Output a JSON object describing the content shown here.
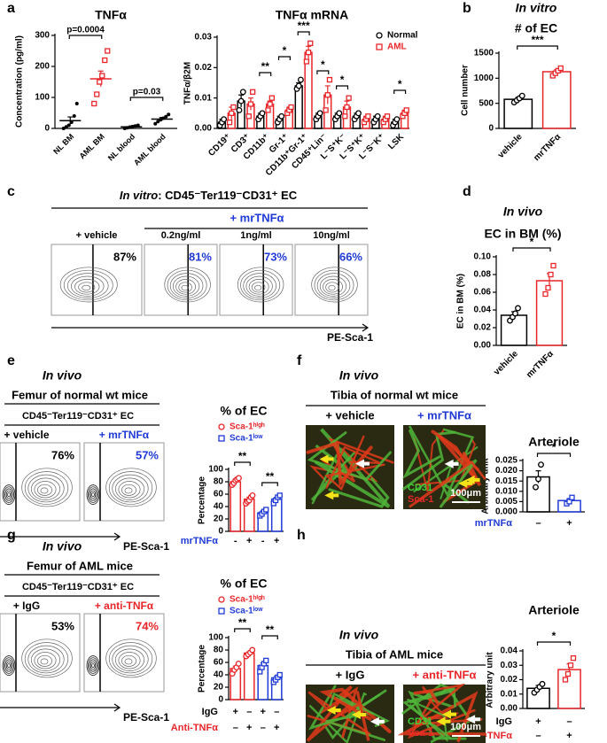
{
  "letters": [
    "a",
    "b",
    "c",
    "d",
    "e",
    "f",
    "g",
    "h"
  ],
  "panels": {
    "c": {
      "context": "In vitro",
      "header": ": CD45⁻Ter119⁻CD31⁺ EC",
      "treatment": "+ mrTNFα",
      "plots": [
        {
          "label": "+ vehicle",
          "pct": "87%"
        },
        {
          "label": "0.2ng/ml",
          "pct": "81%"
        },
        {
          "label": "1ng/ml",
          "pct": "73%"
        },
        {
          "label": "10ng/ml",
          "pct": "66%"
        }
      ],
      "x_axis": "PE-Sca-1"
    },
    "e": {
      "context": "In vivo",
      "title": "Femur of normal wt mice",
      "subtitle": "CD45⁻Ter119⁻CD31⁺ EC",
      "plots": [
        {
          "label": "+ vehicle",
          "pct": "76%"
        },
        {
          "label": "+ mrTNFα",
          "pct": "57%"
        }
      ],
      "x_axis": "PE-Sca-1"
    },
    "f": {
      "context": "In vivo",
      "title": "Tibia of normal wt mice",
      "images": [
        {
          "label": "+ vehicle"
        },
        {
          "label": "+ mrTNFα"
        }
      ],
      "stain": [
        "CD31",
        "Sca-1"
      ],
      "scale": "100μm"
    },
    "g": {
      "context": "In vivo",
      "title": "Femur of AML mice",
      "subtitle": "CD45⁻Ter119⁻CD31⁺ EC",
      "plots": [
        {
          "label": "+ IgG",
          "pct": "53%"
        },
        {
          "label": "+ anti-TNFα",
          "pct": "74%"
        }
      ],
      "x_axis": "PE-Sca-1"
    },
    "h": {
      "context": "In vivo",
      "title": "Tibia of AML mice",
      "images": [
        {
          "label": "+ IgG"
        },
        {
          "label": "+ anti-TNFα"
        }
      ],
      "stain": [
        "CD31",
        "Sca-1"
      ],
      "scale": "100μm"
    }
  },
  "chart_data": [
    {
      "type": "dot",
      "title": "TNFα",
      "y_label": "Concentration (pg/ml)",
      "categories": [
        "NL BM",
        "AML BM",
        "NL blood",
        "AML blood"
      ],
      "series": [
        {
          "colors": [
            "#000000",
            "#e8262a",
            "#000000",
            "#000000"
          ],
          "markers": [
            "dot",
            "square",
            "dot",
            "dot"
          ],
          "values": [
            25,
            160,
            5,
            30
          ],
          "errors": [
            12,
            25,
            3,
            5
          ],
          "points": [
            [
              0,
              5,
              10,
              20,
              40,
              80
            ],
            [
              80,
              110,
              150,
              170,
              220,
              250
            ],
            [
              0,
              2,
              4,
              6,
              8,
              10
            ],
            [
              15,
              22,
              28,
              33,
              38,
              45
            ]
          ]
        }
      ],
      "ylim": [
        0,
        300
      ],
      "yticks": [
        0,
        100,
        200,
        300
      ],
      "annotations": [
        "p=0.0004",
        "p=0.03"
      ]
    },
    {
      "type": "bar",
      "title": "TNFα mRNA",
      "y_label": "TNFα/β2M",
      "categories": [
        "CD19⁺",
        "CD3⁺",
        "CD11b⁺",
        "Gr-1⁺",
        "CD11b⁺Gr-1⁺",
        "CD45⁺Lin⁻",
        "L⁻S⁺K⁻",
        "L⁻S⁺K⁺",
        "L⁻S⁻K⁺",
        "LSK"
      ],
      "series": [
        {
          "name": "Normal",
          "color": "#000000",
          "marker": "circle",
          "values": [
            0.002,
            0.009,
            0.004,
            0.003,
            0.014,
            0.004,
            0.004,
            0.004,
            0.003,
            0.002
          ],
          "errors": [
            0.001,
            0.002,
            0.001,
            0.001,
            0.001,
            0.001,
            0.001,
            0.001,
            0.001,
            0.001
          ],
          "points": [
            [
              0.001,
              0.002,
              0.003
            ],
            [
              0.006,
              0.009,
              0.012
            ],
            [
              0.003,
              0.004,
              0.005
            ],
            [
              0.002,
              0.003,
              0.004
            ],
            [
              0.013,
              0.014,
              0.016
            ],
            [
              0.003,
              0.004,
              0.005
            ],
            [
              0.003,
              0.004,
              0.005
            ],
            [
              0.003,
              0.004,
              0.005
            ],
            [
              0.002,
              0.003,
              0.004
            ],
            [
              0.001,
              0.002,
              0.003
            ]
          ]
        },
        {
          "name": "AML",
          "color": "#e8262a",
          "marker": "square",
          "values": [
            0.005,
            0.008,
            0.008,
            0.006,
            0.025,
            0.011,
            0.007,
            0.003,
            0.003,
            0.005
          ],
          "errors": [
            0.002,
            0.002,
            0.001,
            0.001,
            0.002,
            0.003,
            0.002,
            0.001,
            0.001,
            0.001
          ],
          "points": [
            [
              0.002,
              0.005,
              0.007
            ],
            [
              0.004,
              0.008,
              0.012
            ],
            [
              0.006,
              0.008,
              0.01
            ],
            [
              0.005,
              0.006,
              0.007
            ],
            [
              0.022,
              0.025,
              0.028
            ],
            [
              0.006,
              0.011,
              0.016
            ],
            [
              0.004,
              0.007,
              0.01
            ],
            [
              0.002,
              0.003,
              0.004
            ],
            [
              0.002,
              0.003,
              0.004
            ],
            [
              0.004,
              0.005,
              0.006
            ]
          ]
        }
      ],
      "ylim": [
        0,
        0.03
      ],
      "yticks": [
        {
          "value": 0,
          "label": "0.00"
        },
        {
          "value": 0.01,
          "label": "0.01"
        },
        {
          "value": 0.02,
          "label": "0.02"
        },
        {
          "value": 0.03,
          "label": "0.03"
        }
      ],
      "annotations": [
        "**",
        "*",
        "***",
        "*",
        "*",
        "*"
      ]
    },
    {
      "type": "bar",
      "context": "In vitro",
      "title": "# of EC",
      "y_label": "Cell number",
      "categories": [
        "vehicle",
        "mrTNFα"
      ],
      "series": [
        {
          "colors": [
            "#000000",
            "#e8262a"
          ],
          "markers": [
            "circle",
            "square"
          ],
          "values": [
            580,
            1130
          ],
          "errors": [
            40,
            40
          ],
          "points": [
            [
              520,
              560,
              600,
              650
            ],
            [
              1050,
              1100,
              1150,
              1200
            ]
          ]
        }
      ],
      "ylim": [
        0,
        1500
      ],
      "yticks": [
        0,
        500,
        1000,
        1500
      ],
      "annotations": [
        "***"
      ]
    },
    {
      "type": "bar",
      "context": "In vivo",
      "title": "EC in BM (%)",
      "y_label": "EC in BM (%)",
      "categories": [
        "vehicle",
        "mrTNFα"
      ],
      "series": [
        {
          "colors": [
            "#000000",
            "#e8262a"
          ],
          "markers": [
            "circle",
            "square"
          ],
          "values": [
            0.034,
            0.073
          ],
          "errors": [
            0.004,
            0.008
          ],
          "points": [
            [
              0.028,
              0.032,
              0.036,
              0.042
            ],
            [
              0.058,
              0.065,
              0.08,
              0.09
            ]
          ]
        }
      ],
      "ylim": [
        0,
        0.1
      ],
      "yticks": [
        {
          "value": 0,
          "label": "0.00"
        },
        {
          "value": 0.02,
          "label": "0.02"
        },
        {
          "value": 0.04,
          "label": "0.04"
        },
        {
          "value": 0.06,
          "label": "0.06"
        },
        {
          "value": 0.08,
          "label": "0.08"
        },
        {
          "value": 0.1,
          "label": "0.10"
        }
      ],
      "annotations": [
        "*"
      ]
    },
    {
      "type": "bar",
      "title": "% of EC",
      "y_label": "Percentage",
      "series": [
        {
          "name": "Sca-1ʰⁱᵍʰ",
          "color": "#e8262a",
          "marker": "circle",
          "values": [
            80,
            52
          ],
          "errors": [
            3,
            3
          ],
          "points": [
            [
              75,
              78,
              82,
              84,
              86
            ],
            [
              45,
              48,
              50,
              55,
              58
            ]
          ]
        },
        {
          "name": "Sca-1ˡᵒʷ",
          "color": "#1f3ad6",
          "marker": "square",
          "values": [
            30,
            52
          ],
          "errors": [
            3,
            3
          ],
          "points": [
            [
              25,
              28,
              32,
              35
            ],
            [
              45,
              50,
              55,
              58
            ]
          ]
        }
      ],
      "x_rows": [
        {
          "label": "mrTNFα",
          "color": "#1f3ad6",
          "values": [
            "-",
            "+",
            "-",
            "+"
          ]
        }
      ],
      "ylim": [
        0,
        100
      ],
      "yticks": [
        0,
        20,
        40,
        60,
        80,
        100
      ],
      "annotations": [
        "**",
        "**"
      ]
    },
    {
      "type": "bar",
      "title": "Arteriole",
      "y_label": "Arbitrary unit",
      "series": [
        {
          "colors": [
            "#000000",
            "#1f3ad6"
          ],
          "markers": [
            "circle",
            "square"
          ],
          "values": [
            0.017,
            0.0055
          ],
          "errors": [
            0.003,
            0.001
          ],
          "points": [
            [
              0.012,
              0.016,
              0.023
            ],
            [
              0.004,
              0.005,
              0.007
            ]
          ]
        }
      ],
      "x_rows": [
        {
          "label": "mrTNFα",
          "color": "#1f3ad6",
          "values": [
            "–",
            "+"
          ]
        }
      ],
      "ylim": [
        0,
        0.025
      ],
      "yticks": [
        {
          "value": 0,
          "label": "0.000"
        },
        {
          "value": 0.005,
          "label": "0.005"
        },
        {
          "value": 0.01,
          "label": "0.010"
        },
        {
          "value": 0.015,
          "label": "0.015"
        },
        {
          "value": 0.02,
          "label": "0.020"
        },
        {
          "value": 0.025,
          "label": "0.025"
        }
      ],
      "annotations": [
        "*"
      ]
    },
    {
      "type": "bar",
      "title": "% of EC",
      "y_label": "Percentage",
      "series": [
        {
          "name": "Sca-1ʰⁱᵍʰ",
          "color": "#e8262a",
          "marker": "circle",
          "values": [
            50,
            75
          ],
          "errors": [
            4,
            2
          ],
          "points": [
            [
              42,
              48,
              52,
              58
            ],
            [
              70,
              73,
              76,
              80
            ]
          ]
        },
        {
          "name": "Sca-1ˡᵒʷ",
          "color": "#1f3ad6",
          "marker": "square",
          "values": [
            55,
            35
          ],
          "errors": [
            4,
            3
          ],
          "points": [
            [
              45,
              52,
              58,
              63
            ],
            [
              28,
              32,
              36,
              40
            ]
          ]
        }
      ],
      "x_rows": [
        {
          "label": "IgG",
          "color": "#000000",
          "values": [
            "+",
            "–",
            "+",
            "–"
          ]
        },
        {
          "label": "Anti-TNFα",
          "color": "#e8262a",
          "values": [
            "–",
            "+",
            "–",
            "+"
          ]
        }
      ],
      "ylim": [
        0,
        100
      ],
      "yticks": [
        0,
        20,
        40,
        60,
        80,
        100
      ],
      "annotations": [
        "**",
        "**"
      ]
    },
    {
      "type": "bar",
      "title": "Arteriole",
      "y_label": "Arbitrary unit",
      "series": [
        {
          "colors": [
            "#000000",
            "#e8262a"
          ],
          "markers": [
            "circle",
            "square"
          ],
          "values": [
            0.014,
            0.027
          ],
          "errors": [
            0.002,
            0.004
          ],
          "points": [
            [
              0.011,
              0.013,
              0.015,
              0.017
            ],
            [
              0.02,
              0.024,
              0.03,
              0.035
            ]
          ]
        }
      ],
      "x_rows": [
        {
          "label": "IgG",
          "color": "#000000",
          "values": [
            "+",
            "–"
          ]
        },
        {
          "label": "Anti-TNFα",
          "color": "#e8262a",
          "values": [
            "–",
            "+"
          ]
        }
      ],
      "ylim": [
        0,
        0.04
      ],
      "yticks": [
        {
          "value": 0,
          "label": "0.00"
        },
        {
          "value": 0.01,
          "label": "0.01"
        },
        {
          "value": 0.02,
          "label": "0.02"
        },
        {
          "value": 0.03,
          "label": "0.03"
        },
        {
          "value": 0.04,
          "label": "0.04"
        }
      ],
      "annotations": [
        "*"
      ]
    }
  ]
}
